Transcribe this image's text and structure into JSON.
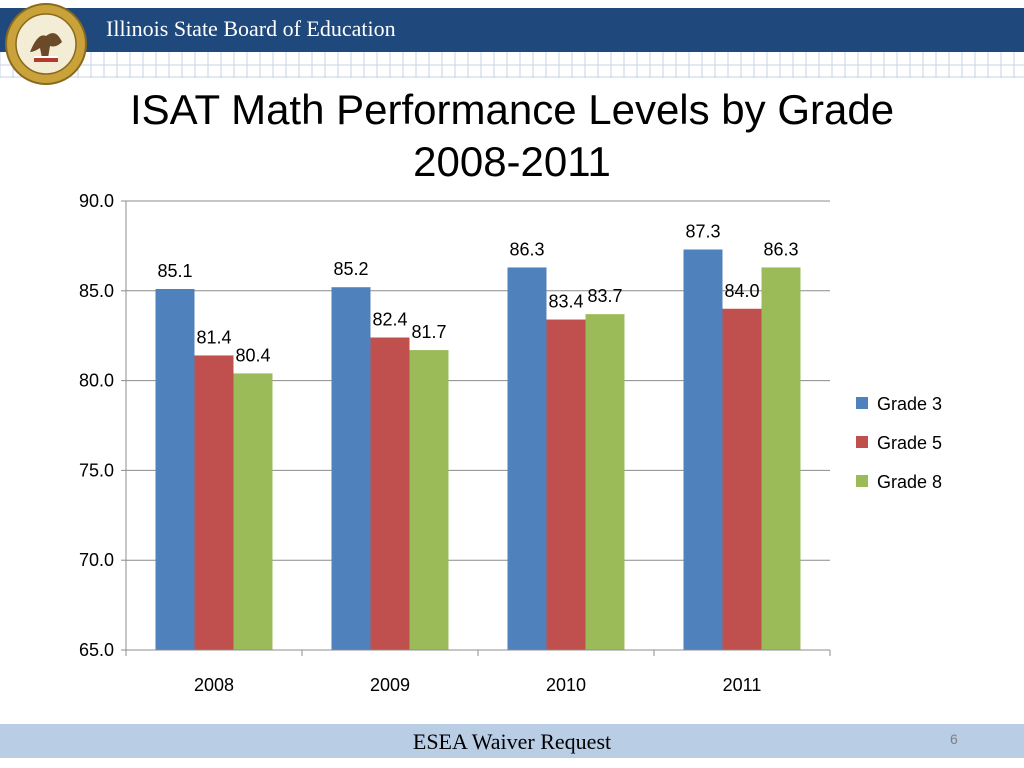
{
  "header": {
    "organization": "Illinois State Board of Education"
  },
  "seal": {
    "text": "SEAL OF THE STATE OF ILLINOIS AUG. 26TH 1818"
  },
  "slide": {
    "title_line1": "ISAT Math Performance Levels by Grade",
    "title_line2": "2008-2011"
  },
  "footer": {
    "text": "ESEA Waiver Request",
    "page_number": "6"
  },
  "chart_data": {
    "type": "bar",
    "categories": [
      "2008",
      "2009",
      "2010",
      "2011"
    ],
    "series": [
      {
        "name": "Grade 3",
        "color": "#4f81bd",
        "values": [
          85.1,
          85.2,
          86.3,
          87.3
        ],
        "labels": [
          "85.1",
          "85.2",
          "86.3",
          "87.3"
        ]
      },
      {
        "name": "Grade 5",
        "color": "#c0504d",
        "values": [
          81.4,
          82.4,
          83.4,
          84.0
        ],
        "labels": [
          "81.4",
          "82.4",
          "83.4",
          "84.0"
        ]
      },
      {
        "name": "Grade 8",
        "color": "#9bbb59",
        "values": [
          80.4,
          81.7,
          83.7,
          86.3
        ],
        "labels": [
          "80.4",
          "81.7",
          "83.7",
          "86.3"
        ]
      }
    ],
    "ylim": [
      65.0,
      90.0
    ],
    "yticks": [
      "65.0",
      "70.0",
      "75.0",
      "80.0",
      "85.0",
      "90.0"
    ],
    "grid": true,
    "legend": "right"
  }
}
